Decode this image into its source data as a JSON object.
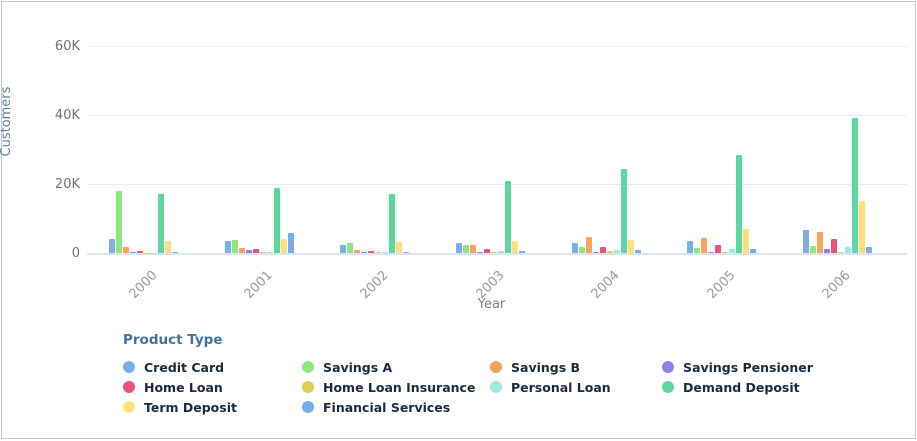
{
  "chart_data": {
    "type": "bar",
    "xlabel": "Year",
    "ylabel": "Customers",
    "ylim": [
      0,
      60000
    ],
    "grid": true,
    "y_ticks": [
      {
        "label": "0",
        "value": 0
      },
      {
        "label": "20K",
        "value": 20000
      },
      {
        "label": "40K",
        "value": 40000
      },
      {
        "label": "60K",
        "value": 60000
      }
    ],
    "categories": [
      "2000",
      "2001",
      "2002",
      "2003",
      "2004",
      "2005",
      "2006"
    ],
    "series": [
      {
        "name": "Credit Card",
        "color": "#7cb0e4",
        "values": [
          4000,
          3400,
          2300,
          2900,
          3000,
          3600,
          6800
        ]
      },
      {
        "name": "Savings A",
        "color": "#8de87e",
        "values": [
          17900,
          3900,
          3000,
          2400,
          1800,
          1500,
          2100
        ]
      },
      {
        "name": "Savings B",
        "color": "#f7a55e",
        "values": [
          1800,
          1500,
          1000,
          2300,
          4700,
          4400,
          6200
        ]
      },
      {
        "name": "Savings Pensioner",
        "color": "#8d85e3",
        "values": [
          200,
          900,
          200,
          200,
          300,
          400,
          1100
        ]
      },
      {
        "name": "Home Loan",
        "color": "#ec537b",
        "values": [
          500,
          1300,
          700,
          1300,
          1700,
          2400,
          4100
        ]
      },
      {
        "name": "Home Loan Insurance",
        "color": "#e2cd58",
        "values": [
          100,
          200,
          200,
          200,
          600,
          300,
          400
        ]
      },
      {
        "name": "Personal Loan",
        "color": "#9ce9dd",
        "values": [
          100,
          300,
          200,
          700,
          1000,
          1200,
          1800
        ]
      },
      {
        "name": "Demand Deposit",
        "color": "#5ed79f",
        "values": [
          17000,
          18900,
          17100,
          20900,
          24400,
          28400,
          39200
        ]
      },
      {
        "name": "Term Deposit",
        "color": "#ffe17c",
        "values": [
          3500,
          4100,
          3300,
          3600,
          3900,
          7000,
          15200
        ]
      },
      {
        "name": "Financial Services",
        "color": "#77ade8",
        "values": [
          200,
          5900,
          400,
          700,
          900,
          1200,
          1800
        ]
      }
    ],
    "legend_title": "Product Type",
    "legend_position": "bottom"
  }
}
